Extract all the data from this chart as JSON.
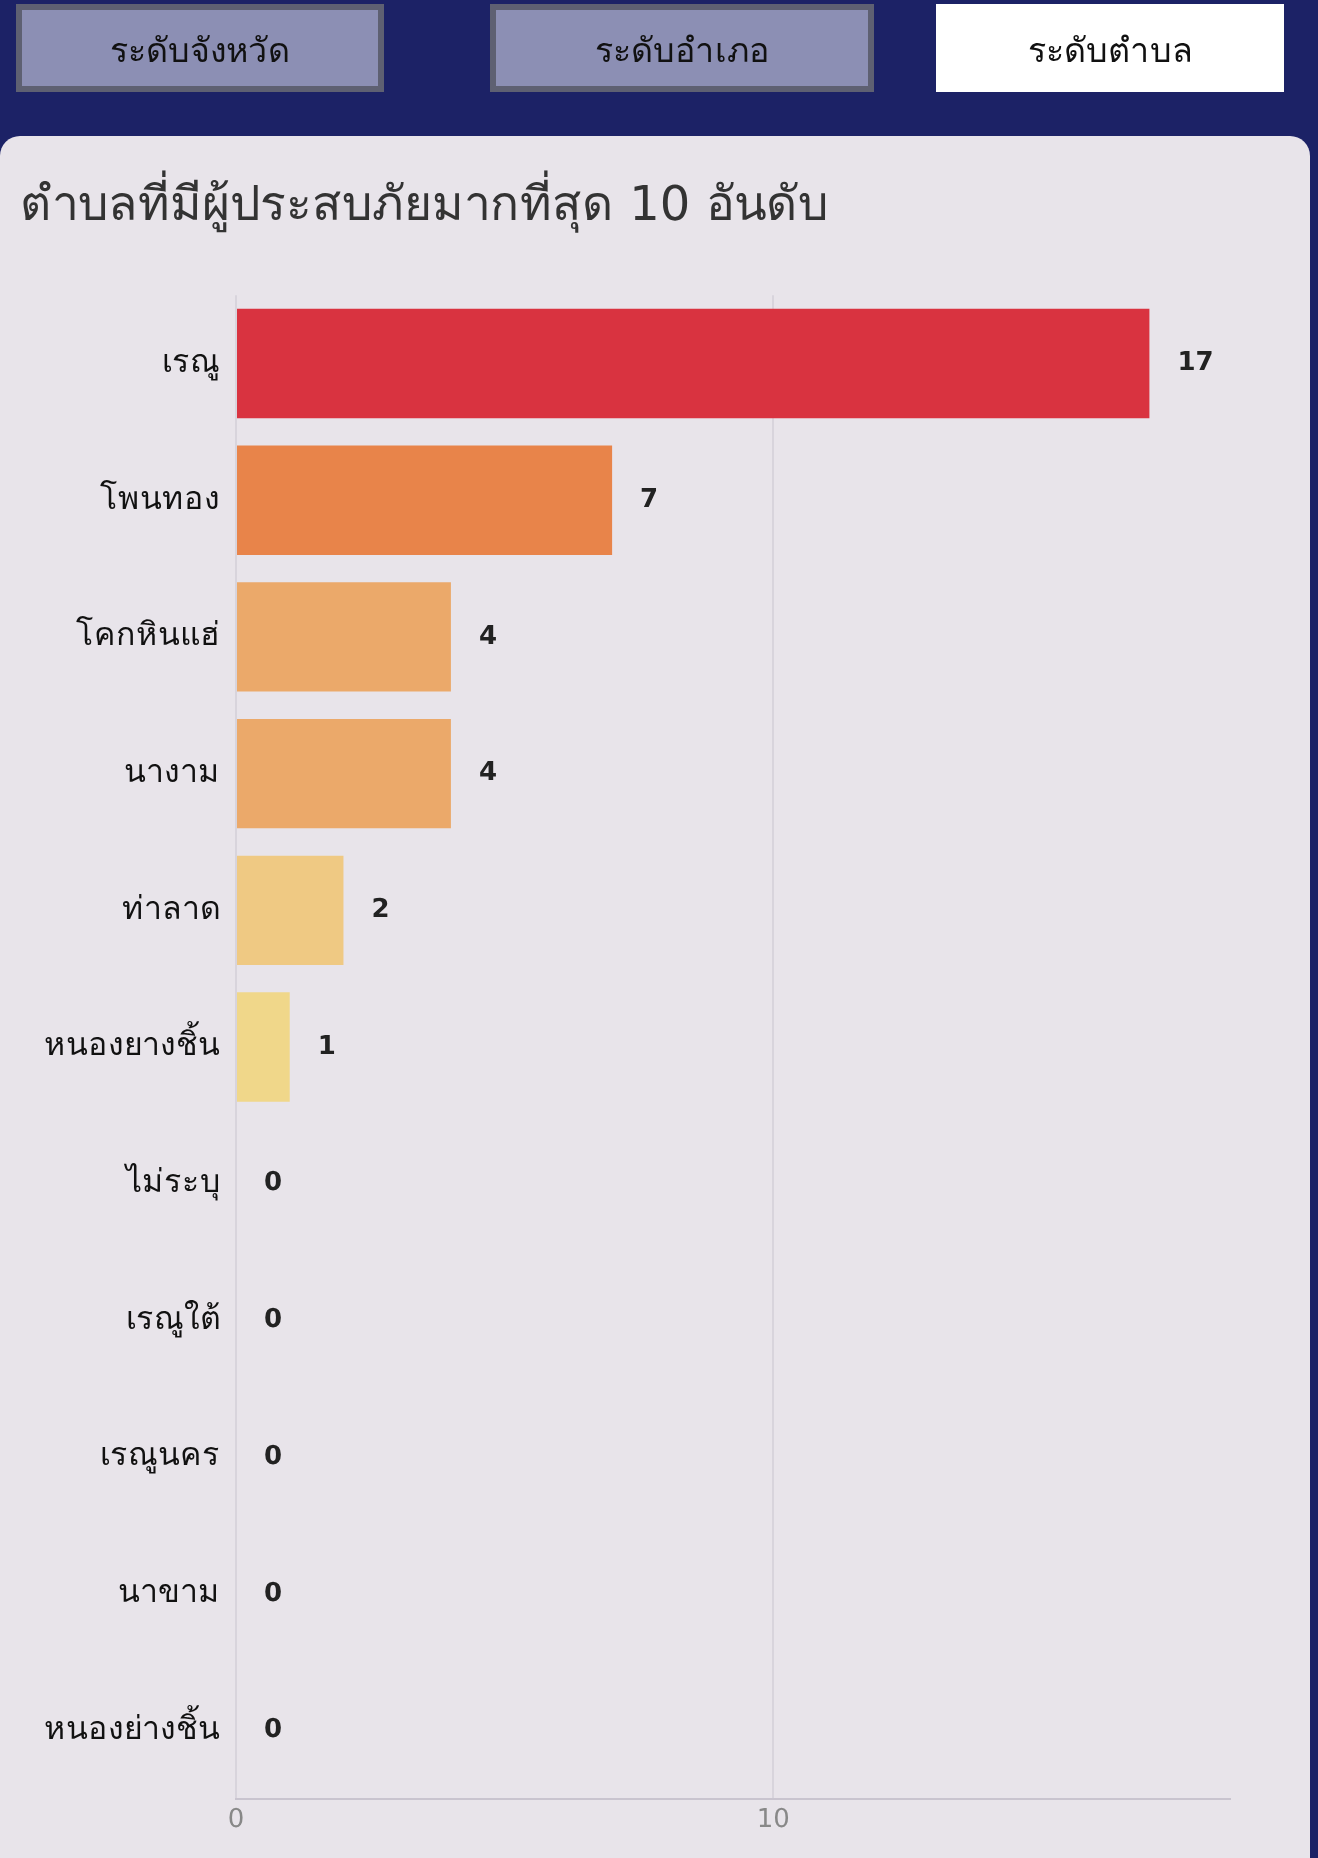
{
  "chart_data": {
    "type": "bar",
    "orientation": "horizontal",
    "title": "ตำบลที่มีผู้ประสบภัยมากที่สุด 10 อันดับ",
    "annotations": [
      "ระดับจังหวัด",
      "ระดับอำเภอ",
      "ระดับตำบล"
    ],
    "categories": [
      "เรณู",
      "โพนทอง",
      "โคกหินแฮ่",
      "นางาม",
      "ท่าลาด",
      "หนองยางชิ้น",
      "ไม่ระบุ",
      "เรณูใต้",
      "เรณูนคร",
      "นาขาม",
      "หนองย่างชิ้น"
    ],
    "values": [
      17,
      7,
      4,
      4,
      2,
      1,
      0,
      0,
      0,
      0,
      0
    ],
    "colors": [
      "#d93340",
      "#e8844a",
      "#eba96a",
      "#eba96a",
      "#efc983",
      "#f0d78a",
      "#f0d78a",
      "#f0d78a",
      "#f0d78a",
      "#f0d78a",
      "#f0d78a"
    ],
    "xlim": [
      0,
      18.5
    ],
    "xticks": [
      0,
      10
    ],
    "grid": "x",
    "data_labels": true,
    "legend": false
  }
}
